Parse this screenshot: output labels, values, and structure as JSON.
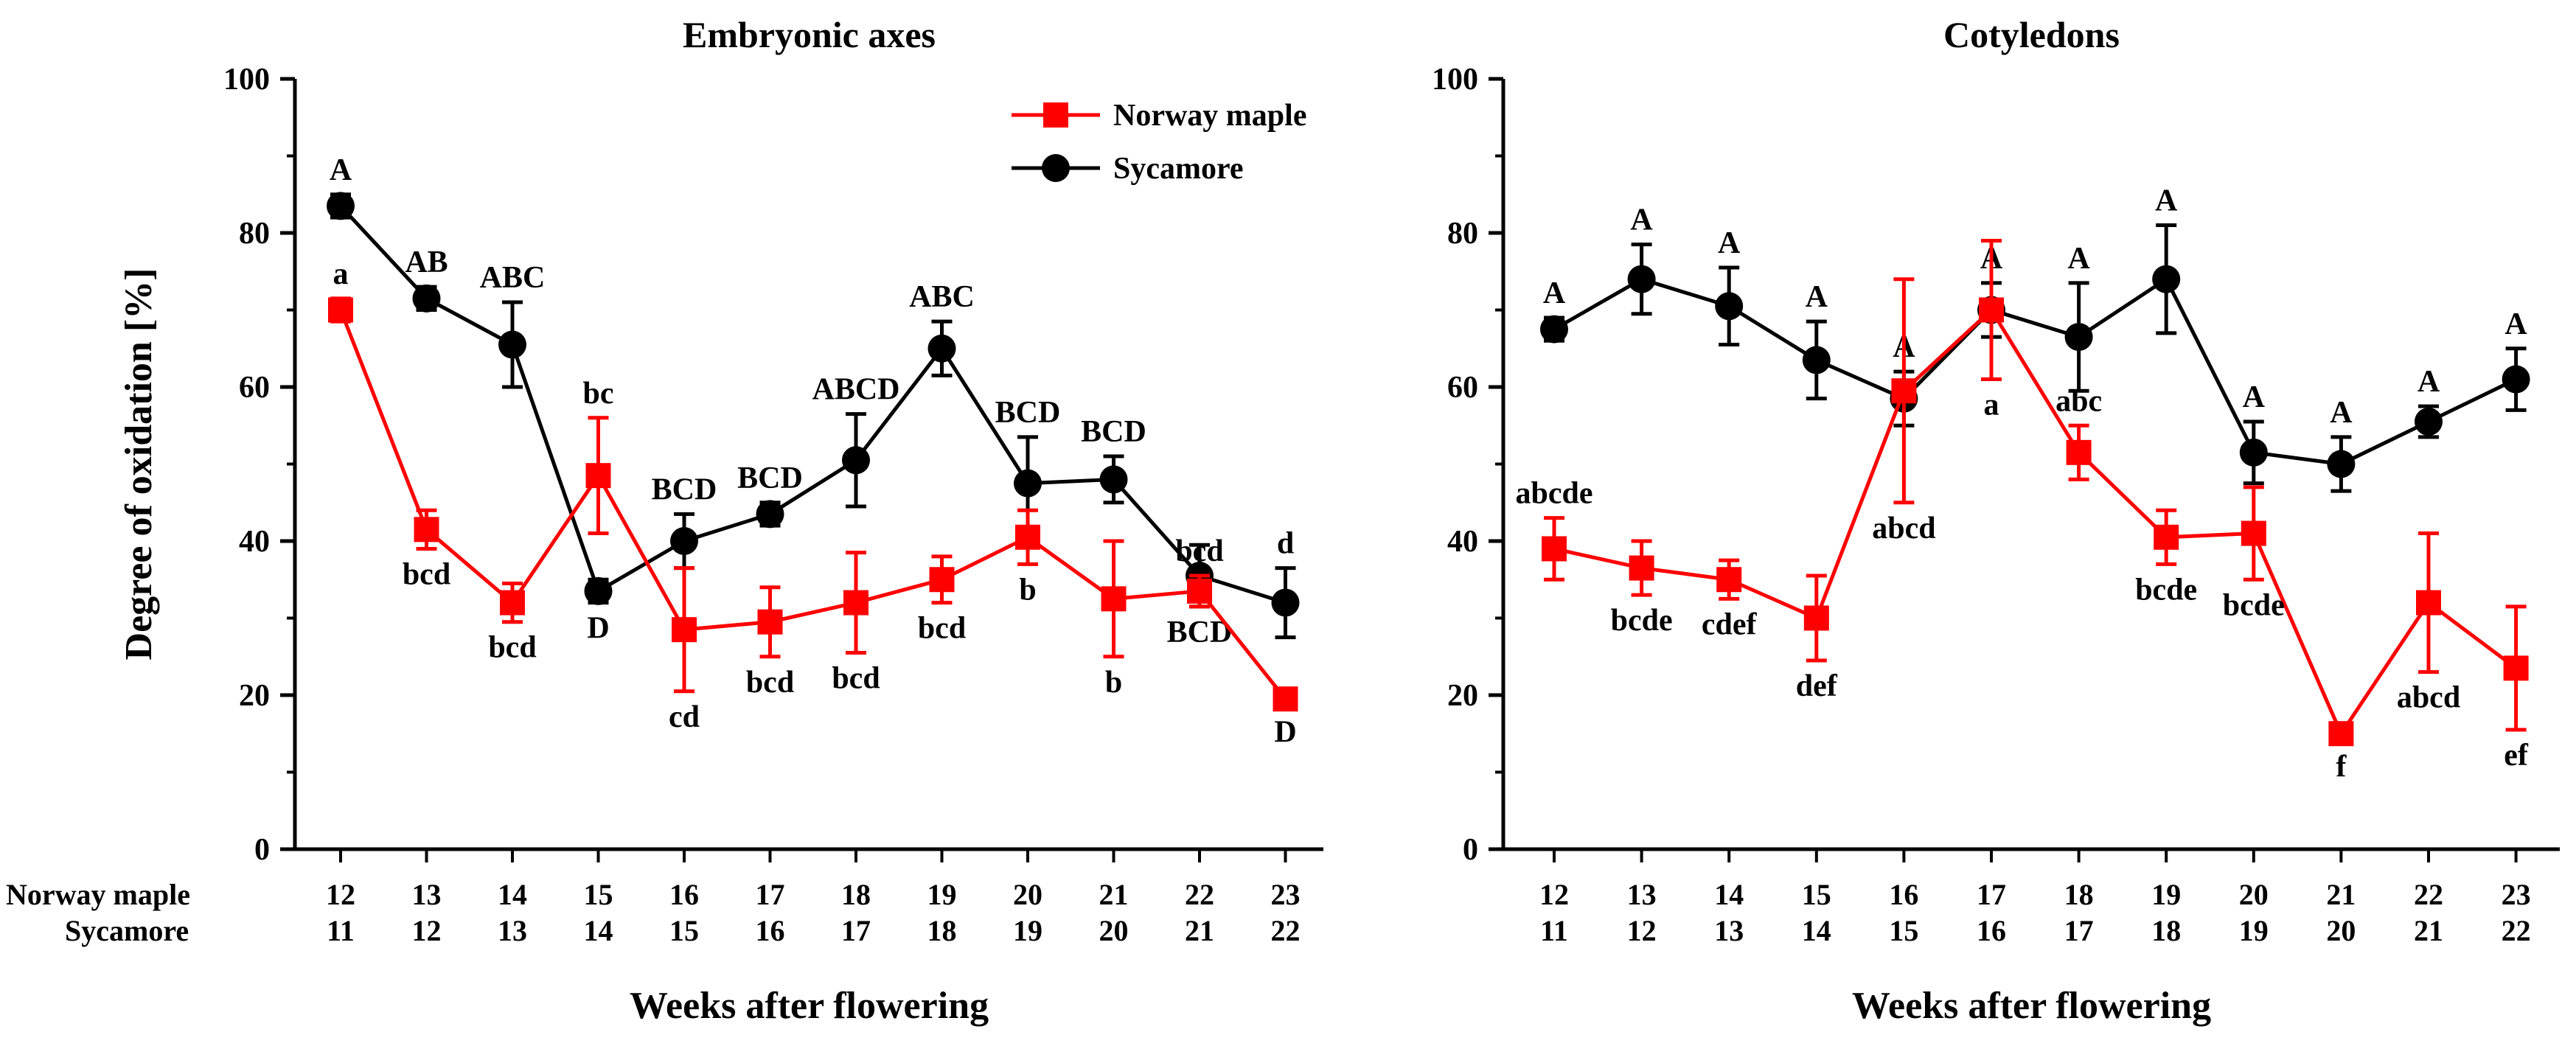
{
  "chart_data": [
    {
      "type": "line",
      "title": "Embryonic axes",
      "ylabel": "Degree of oxidation [%]",
      "xlabel": "Weeks after flowering",
      "ylim": [
        0,
        100
      ],
      "yticks": [
        "0",
        "20",
        "40",
        "60",
        "80",
        "100"
      ],
      "x_row_labels": [
        "Norway maple",
        "Sycamore"
      ],
      "categories_norway": [
        "12",
        "13",
        "14",
        "15",
        "16",
        "17",
        "18",
        "19",
        "20",
        "21",
        "22",
        "23"
      ],
      "categories_sycamore": [
        "11",
        "12",
        "13",
        "14",
        "15",
        "16",
        "17",
        "18",
        "19",
        "20",
        "21",
        "22"
      ],
      "legend": [
        "Norway maple",
        "Sycamore"
      ],
      "series": [
        {
          "name": "Norway maple",
          "color": "#ff0000",
          "marker": "square",
          "values": [
            70,
            41.5,
            32,
            48.5,
            28.5,
            29.5,
            32,
            35,
            40.5,
            32.5,
            33.5,
            19.5
          ],
          "errors": [
            1.5,
            2.5,
            2.5,
            7.5,
            8,
            4.5,
            6.5,
            3,
            3.5,
            7.5,
            2,
            1
          ],
          "letters": [
            "a",
            "bcd",
            "bcd",
            "bc",
            "cd",
            "bcd",
            "bcd",
            "bcd",
            "b",
            "b",
            "bcd",
            "D"
          ]
        },
        {
          "name": "Sycamore",
          "color": "#000000",
          "marker": "circle",
          "values": [
            83.5,
            71.5,
            65.5,
            33.5,
            40,
            43.5,
            50.5,
            65,
            47.5,
            48,
            35.5,
            32
          ],
          "errors": [
            1.5,
            1.5,
            5.5,
            1.5,
            3.5,
            1.5,
            6,
            3.5,
            6,
            3,
            4,
            4.5
          ],
          "letters": [
            "A",
            "AB",
            "ABC",
            "D",
            "BCD",
            "BCD",
            "ABCD",
            "ABC",
            "BCD",
            "BCD",
            "BCD",
            "d"
          ]
        }
      ]
    },
    {
      "type": "line",
      "title": "Cotyledons",
      "ylabel": "",
      "xlabel": "Weeks after flowering",
      "ylim": [
        0,
        100
      ],
      "yticks": [
        "0",
        "20",
        "40",
        "60",
        "80",
        "100"
      ],
      "categories_norway": [
        "12",
        "13",
        "14",
        "15",
        "16",
        "17",
        "18",
        "19",
        "20",
        "21",
        "22",
        "23"
      ],
      "categories_sycamore": [
        "11",
        "12",
        "13",
        "14",
        "15",
        "16",
        "17",
        "18",
        "19",
        "20",
        "21",
        "22"
      ],
      "series": [
        {
          "name": "Norway maple",
          "color": "#ff0000",
          "marker": "square",
          "values": [
            39,
            36.5,
            35,
            30,
            59.5,
            70,
            51.5,
            40.5,
            41,
            15,
            32,
            23.5
          ],
          "errors": [
            4,
            3.5,
            2.5,
            5.5,
            14.5,
            9,
            3.5,
            3.5,
            6,
            1,
            9,
            8
          ],
          "letters": [
            "abcde",
            "bcde",
            "cdef",
            "def",
            "abcd",
            "a",
            "abc",
            "bcde",
            "bcde",
            "f",
            "abcd",
            "ef"
          ]
        },
        {
          "name": "Sycamore",
          "color": "#000000",
          "marker": "circle",
          "values": [
            67.5,
            74,
            70.5,
            63.5,
            58.5,
            70,
            66.5,
            74,
            51.5,
            50,
            55.5,
            61
          ],
          "errors": [
            1.5,
            4.5,
            5,
            5,
            3.5,
            3.5,
            7,
            7,
            4,
            3.5,
            2,
            4
          ],
          "letters": [
            "A",
            "A",
            "A",
            "A",
            "A",
            "A",
            "A",
            "A",
            "A",
            "A",
            "A",
            "A"
          ]
        }
      ]
    }
  ]
}
